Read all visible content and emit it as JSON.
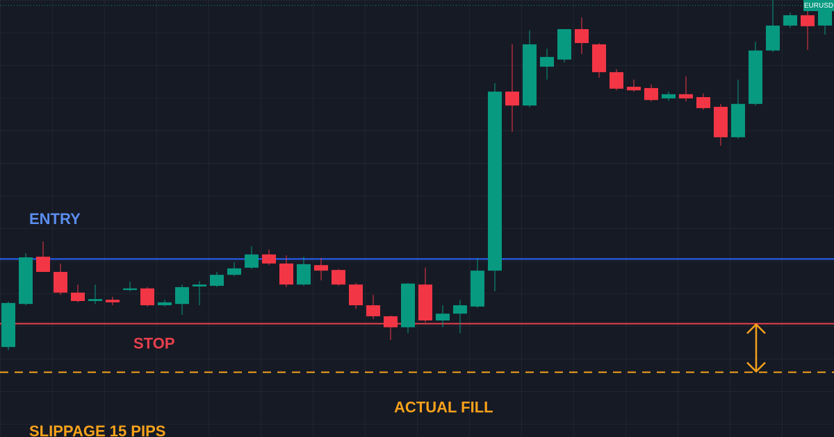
{
  "chart_data": {
    "type": "candlestick",
    "symbol": "EURUSD",
    "ylim": [
      -35,
      100
    ],
    "up_color": "#089981",
    "down_color": "#f23645",
    "open": [
      -7.2,
      6.1,
      20.7,
      16.0,
      9.6,
      7.0,
      7.4,
      10.4,
      10.9,
      5.7,
      6.1,
      11.5,
      11.7,
      15.1,
      17.3,
      21.4,
      18.6,
      12.1,
      18.1,
      16.6,
      12.1,
      5.7,
      2.3,
      -1.1,
      12.1,
      1.0,
      3.1,
      5.3,
      16.4,
      71.7,
      67.4,
      79.4,
      81.6,
      91.0,
      86.3,
      77.7,
      73.2,
      72.8,
      69.6,
      70.9,
      70.0,
      67.0,
      57.6,
      67.9,
      84.4,
      92.1,
      95.3,
      92.1
    ],
    "high": [
      6.8,
      21.8,
      25.4,
      18.6,
      12.1,
      12.1,
      8.3,
      13.0,
      11.3,
      7.4,
      12.1,
      13.2,
      16.0,
      19.0,
      23.9,
      22.9,
      21.1,
      20.7,
      20.3,
      16.9,
      12.6,
      8.9,
      2.5,
      12.6,
      17.3,
      5.7,
      7.4,
      20.3,
      74.3,
      86.3,
      90.6,
      85.0,
      91.0,
      94.6,
      86.7,
      78.6,
      75.4,
      73.9,
      71.7,
      76.4,
      71.1,
      67.9,
      75.4,
      87.1,
      100,
      96.1,
      97.9,
      98.9
    ],
    "low": [
      -8.2,
      5.7,
      16.0,
      8.9,
      6.6,
      6.1,
      5.7,
      10.0,
      5.3,
      5.3,
      2.7,
      5.7,
      11.3,
      14.7,
      16.9,
      18.1,
      11.3,
      11.7,
      13.4,
      11.7,
      4.6,
      1.4,
      -5.0,
      -2.9,
      0.4,
      -1.1,
      -2.9,
      4.9,
      10.0,
      59.3,
      66.8,
      75.4,
      80.7,
      83.3,
      76.0,
      72.1,
      71.7,
      68.7,
      68.9,
      68.7,
      66.1,
      55.0,
      57.1,
      67.4,
      83.9,
      91.4,
      84.6,
      89.3
    ],
    "close": [
      6.4,
      20.5,
      16.0,
      9.6,
      7.0,
      7.6,
      6.6,
      10.9,
      5.7,
      6.6,
      11.3,
      12.1,
      15.1,
      17.1,
      21.4,
      18.6,
      12.1,
      18.4,
      16.4,
      12.1,
      5.7,
      2.3,
      -1.1,
      12.4,
      1.0,
      3.1,
      5.7,
      16.4,
      71.7,
      67.4,
      86.3,
      82.4,
      91.0,
      86.7,
      77.7,
      72.6,
      72.1,
      69.1,
      70.9,
      69.6,
      66.6,
      57.6,
      67.9,
      84.4,
      92.1,
      95.3,
      91.9,
      97.9
    ],
    "last_price": 98.3,
    "levels": [
      {
        "name": "ENTRY",
        "value": 20,
        "color": "#2962ff",
        "text_color": "#5b8def"
      },
      {
        "name": "STOP",
        "value": 0,
        "color": "#e8404c",
        "text_color": "#e8404c"
      },
      {
        "name": "ACTUAL FILL",
        "value": -15,
        "color": "#f7a21b",
        "text_color": "#f7a21b",
        "dashed": true
      }
    ],
    "slippage": {
      "value": 15,
      "label": "SLIPPAGE 15 PIPS",
      "color": "#f7a21b"
    }
  }
}
